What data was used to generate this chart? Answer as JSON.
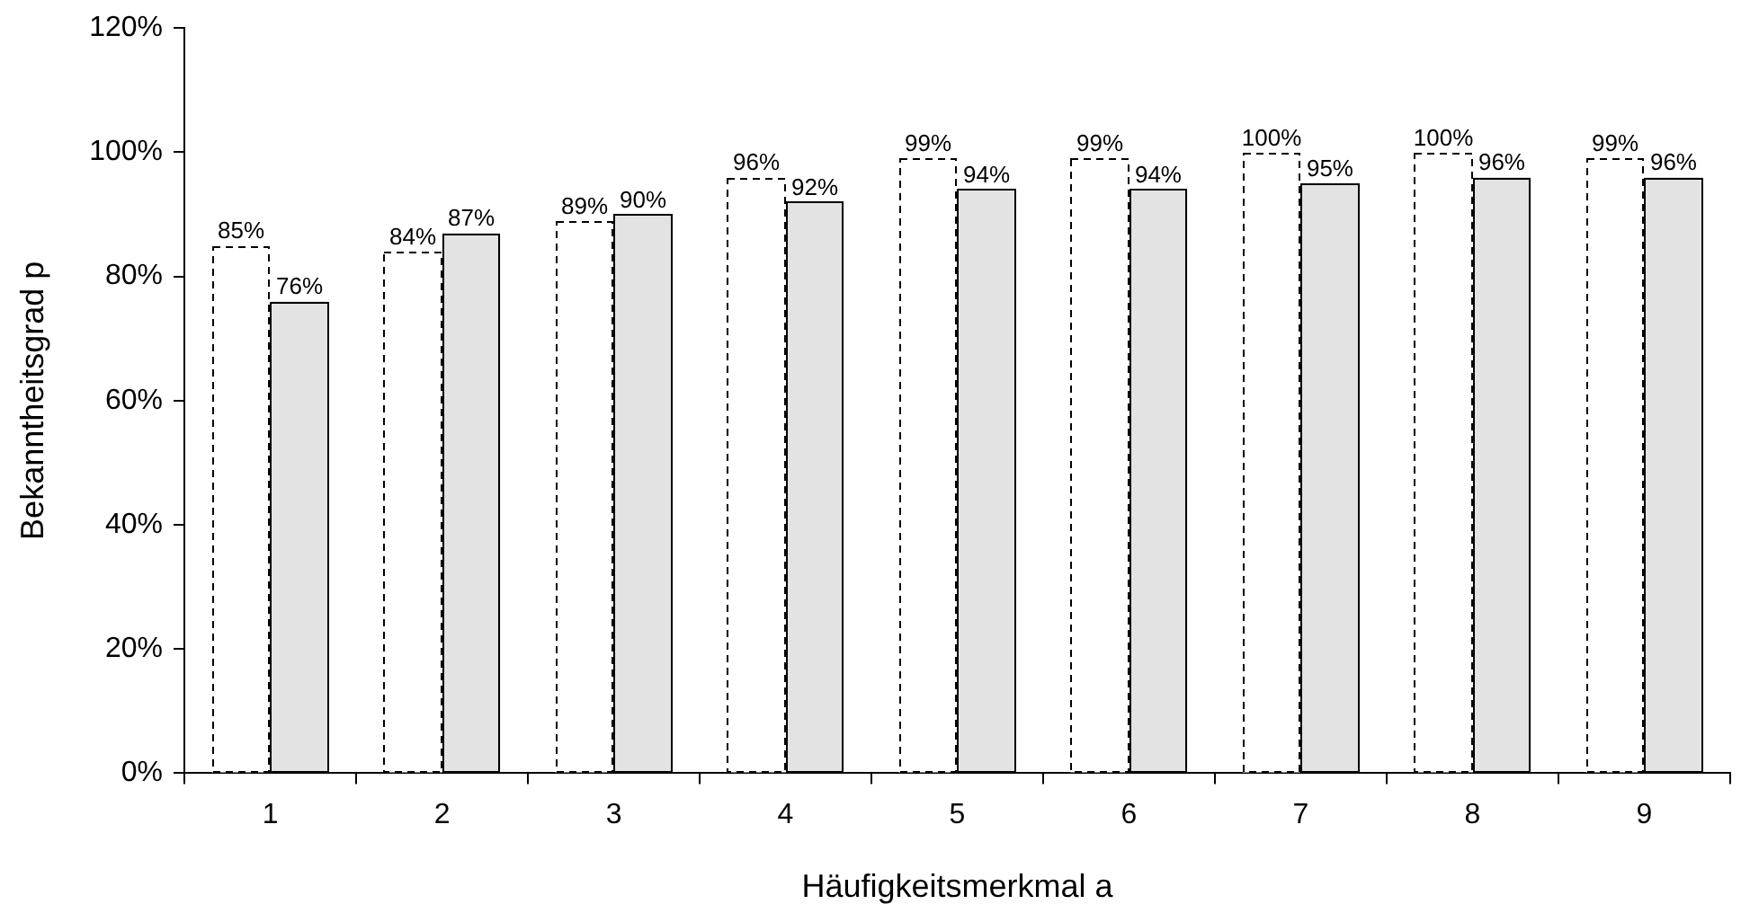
{
  "chart_data": {
    "type": "bar",
    "xlabel": "Häufigkeitsmerkmal a",
    "ylabel": "Bekanntheitsgrad p",
    "categories": [
      "1",
      "2",
      "3",
      "4",
      "5",
      "6",
      "7",
      "8",
      "9"
    ],
    "series": [
      {
        "color": "#ffffff",
        "line_style": "dashed",
        "values": [
          85,
          84,
          89,
          96,
          99,
          99,
          100,
          100,
          99
        ],
        "value_labels": [
          "85%",
          "84%",
          "89%",
          "96%",
          "99%",
          "99%",
          "100%",
          "100%",
          "99%"
        ]
      },
      {
        "color": "#e3e3e3",
        "line_style": "solid",
        "values": [
          76,
          87,
          90,
          92,
          94,
          94,
          95,
          96,
          96
        ],
        "value_labels": [
          "76%",
          "87%",
          "90%",
          "92%",
          "94%",
          "94%",
          "95%",
          "96%",
          "96%"
        ]
      }
    ],
    "ylim": [
      0,
      120
    ],
    "yticks": [
      {
        "value": 0,
        "label": "0%"
      },
      {
        "value": 20,
        "label": "20%"
      },
      {
        "value": 40,
        "label": "40%"
      },
      {
        "value": 60,
        "label": "60%"
      },
      {
        "value": 80,
        "label": "80%"
      },
      {
        "value": 100,
        "label": "100%"
      },
      {
        "value": 120,
        "label": "120%"
      }
    ],
    "grid": false,
    "legend": false
  }
}
